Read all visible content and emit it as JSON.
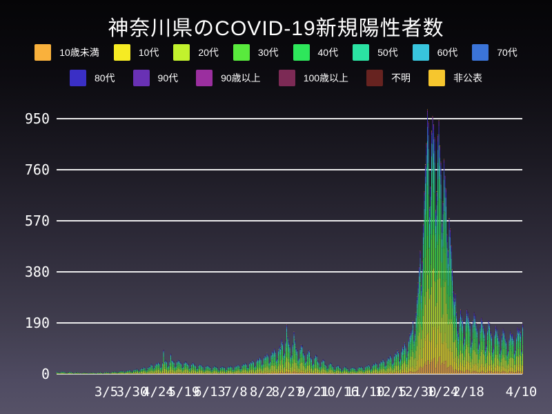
{
  "title": "神奈川県のCOVID-19新規陽性者数",
  "legend": {
    "row1": [
      {
        "label": "10歳未満",
        "color": "#F9B13C"
      },
      {
        "label": "10代",
        "color": "#F6EB23"
      },
      {
        "label": "20代",
        "color": "#C2F22D"
      },
      {
        "label": "30代",
        "color": "#59EA3D"
      },
      {
        "label": "40代",
        "color": "#2EE75B"
      },
      {
        "label": "50代",
        "color": "#2BE3A3"
      },
      {
        "label": "60代",
        "color": "#38C5DD"
      },
      {
        "label": "70代",
        "color": "#3B74D8"
      }
    ],
    "row2": [
      {
        "label": "80代",
        "color": "#3A2FC5"
      },
      {
        "label": "90代",
        "color": "#6931B4"
      },
      {
        "label": "90歳以上",
        "color": "#9B2F9F"
      },
      {
        "label": "100歳以上",
        "color": "#7C2A55"
      },
      {
        "label": "不明",
        "color": "#672320"
      },
      {
        "label": "非公表",
        "color": "#F6C62E"
      }
    ]
  },
  "chart_data": {
    "type": "bar",
    "stacked": true,
    "title": "神奈川県のCOVID-19新規陽性者数",
    "xlabel": "",
    "ylabel": "",
    "ylim": [
      0,
      1030
    ],
    "yticks": [
      0,
      190,
      380,
      570,
      760,
      950
    ],
    "grid": "horizontal-white-lines",
    "legend_position": "top-two-rows",
    "values_estimated_from_pixels": true,
    "xtick_labels": [
      "3/5",
      "3/30",
      "4/24",
      "5/19",
      "6/13",
      "7/8",
      "8/2",
      "8/27",
      "9/21",
      "10/16",
      "11/10",
      "12/5",
      "12/30",
      "1/24",
      "2/18",
      "4/10"
    ],
    "xtick_day_index": [
      48,
      73,
      98,
      123,
      148,
      173,
      198,
      223,
      248,
      273,
      298,
      323,
      348,
      373,
      398,
      449
    ],
    "days_total": 451,
    "age_groups": [
      {
        "name": "10歳未満",
        "color": "#F9B13C"
      },
      {
        "name": "10代",
        "color": "#F6EB23"
      },
      {
        "name": "20代",
        "color": "#C2F22D"
      },
      {
        "name": "30代",
        "color": "#59EA3D"
      },
      {
        "name": "40代",
        "color": "#2EE75B"
      },
      {
        "name": "50代",
        "color": "#2BE3A3"
      },
      {
        "name": "60代",
        "color": "#38C5DD"
      },
      {
        "name": "70代",
        "color": "#3B74D8"
      },
      {
        "name": "80代",
        "color": "#3A2FC5"
      },
      {
        "name": "90代",
        "color": "#6931B4"
      },
      {
        "name": "90歳以上",
        "color": "#9B2F9F"
      },
      {
        "name": "100歳以上",
        "color": "#7C2A55"
      },
      {
        "name": "不明",
        "color": "#672320"
      },
      {
        "name": "非公表",
        "color": "#F6C62E"
      }
    ],
    "age_share_2021": [
      0.05,
      0.08,
      0.235,
      0.18,
      0.17,
      0.13,
      0.06,
      0.04,
      0.03,
      0.015,
      0.004,
      0.0005,
      0.0015,
      0.004
    ],
    "age_share_omicron": [
      0.055,
      0.125,
      0.222,
      0.165,
      0.17,
      0.1,
      0.06,
      0.045,
      0.035,
      0.015,
      0.004,
      0.0006,
      0.0014,
      0.002
    ],
    "daily_totals": [
      9,
      8,
      5,
      6,
      8,
      10,
      9,
      8,
      7,
      4,
      5,
      7,
      8,
      8,
      7,
      6,
      4,
      4,
      6,
      7,
      7,
      6,
      5,
      3,
      4,
      5,
      6,
      6,
      5,
      5,
      3,
      3,
      5,
      6,
      5,
      6,
      5,
      3,
      4,
      5,
      6,
      6,
      7,
      6,
      4,
      4,
      6,
      7,
      8,
      8,
      7,
      4,
      5,
      8,
      9,
      9,
      10,
      9,
      6,
      7,
      10,
      11,
      11,
      12,
      11,
      7,
      8,
      12,
      13,
      13,
      15,
      14,
      9,
      10,
      15,
      17,
      16,
      20,
      18,
      11,
      13,
      19,
      22,
      21,
      26,
      24,
      15,
      17,
      25,
      28,
      27,
      38,
      35,
      22,
      24,
      36,
      41,
      40,
      44,
      40,
      25,
      28,
      43,
      90,
      48,
      52,
      47,
      29,
      32,
      49,
      75,
      53,
      50,
      46,
      28,
      31,
      47,
      53,
      51,
      45,
      41,
      25,
      28,
      42,
      47,
      46,
      40,
      36,
      22,
      25,
      37,
      42,
      41,
      35,
      32,
      20,
      22,
      33,
      37,
      36,
      31,
      28,
      17,
      19,
      29,
      33,
      32,
      28,
      25,
      16,
      17,
      26,
      30,
      29,
      26,
      24,
      15,
      16,
      25,
      28,
      27,
      27,
      25,
      15,
      17,
      26,
      29,
      28,
      30,
      27,
      17,
      19,
      28,
      32,
      31,
      35,
      32,
      20,
      22,
      34,
      38,
      37,
      42,
      38,
      24,
      26,
      40,
      46,
      44,
      52,
      47,
      29,
      32,
      50,
      57,
      55,
      64,
      58,
      36,
      40,
      62,
      70,
      68,
      78,
      71,
      44,
      49,
      75,
      86,
      83,
      95,
      86,
      53,
      59,
      91,
      104,
      100,
      130,
      118,
      73,
      81,
      125,
      185,
      140,
      120,
      108,
      67,
      74,
      115,
      158,
      128,
      100,
      90,
      56,
      62,
      96,
      110,
      106,
      82,
      74,
      46,
      51,
      79,
      90,
      87,
      65,
      59,
      37,
      41,
      63,
      72,
      69,
      50,
      45,
      28,
      31,
      48,
      55,
      53,
      38,
      34,
      21,
      24,
      37,
      42,
      40,
      30,
      27,
      17,
      19,
      29,
      33,
      32,
      25,
      22,
      14,
      15,
      24,
      28,
      27,
      22,
      20,
      12,
      14,
      21,
      25,
      24,
      24,
      21,
      13,
      15,
      23,
      27,
      26,
      28,
      25,
      16,
      17,
      27,
      32,
      30,
      35,
      31,
      19,
      22,
      33,
      39,
      37,
      44,
      39,
      24,
      27,
      42,
      49,
      47,
      56,
      50,
      31,
      35,
      54,
      63,
      60,
      72,
      65,
      40,
      45,
      69,
      81,
      77,
      92,
      83,
      51,
      58,
      89,
      104,
      99,
      118,
      106,
      66,
      90,
      130,
      150,
      160,
      170,
      200,
      130,
      160,
      230,
      290,
      340,
      400,
      460,
      330,
      420,
      560,
      680,
      780,
      860,
      985,
      940,
      620,
      700,
      905,
      960,
      930,
      880,
      610,
      680,
      890,
      945,
      850,
      790,
      560,
      640,
      800,
      740,
      690,
      520,
      460,
      580,
      540,
      480,
      390,
      310,
      280,
      300,
      230,
      170,
      150,
      210,
      240,
      220,
      200,
      120,
      140,
      210,
      240,
      230,
      210,
      190,
      110,
      130,
      200,
      230,
      220,
      190,
      170,
      100,
      120,
      180,
      210,
      200,
      180,
      160,
      95,
      110,
      170,
      200,
      190,
      160,
      145,
      85,
      100,
      155,
      180,
      170,
      150,
      135,
      80,
      95,
      145,
      170,
      160,
      140,
      125,
      75,
      90,
      135,
      160,
      150,
      150,
      135,
      80,
      95,
      145,
      175,
      165,
      170,
      155,
      90,
      185
    ]
  }
}
